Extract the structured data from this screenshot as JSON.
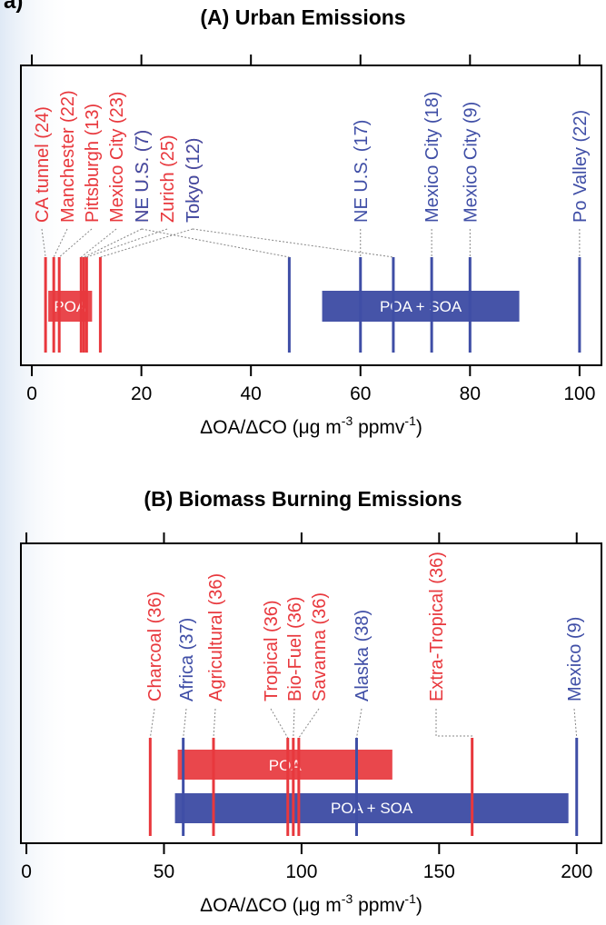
{
  "page": {
    "corner_label": "a)"
  },
  "colors": {
    "red": "#e8383d",
    "blue": "#3f4ea6",
    "poa_fill": "#e9474c",
    "soa_fill": "#4654a8"
  },
  "chart_data": [
    {
      "type": "bar",
      "title": "(A) Urban Emissions",
      "xlabel": "ΔOA/ΔCO (μg m-3 ppmv-1)",
      "xlabel_parts": {
        "main": "ΔOA/ΔCO (μg m",
        "sup1": "-3",
        "mid": " ppmv",
        "sup2": "-1",
        "end": ")"
      },
      "xlim": [
        -2,
        104
      ],
      "xticks": [
        0,
        20,
        40,
        60,
        80,
        100
      ],
      "xtick_labels": [
        "0",
        "20",
        "40",
        "60",
        "80",
        "100"
      ],
      "series": [
        {
          "name": "POA",
          "color": "#e8383d",
          "points": [
            {
              "label": "CA tunnel (24)",
              "x": 2.5
            },
            {
              "label": "Manchester (22)",
              "x": 4.0
            },
            {
              "label": "Pittsburgh (13)",
              "x": 5.0
            },
            {
              "label": "Mexico City (23)",
              "x": 9.0
            },
            {
              "label": "NE U.S. (7)",
              "x": 9.5
            },
            {
              "label": "Zurich (25)",
              "x": 10.0
            },
            {
              "label": "Tokyo (12)",
              "x": 12.5
            }
          ]
        },
        {
          "name": "POA + SOA",
          "color": "#3f4ea6",
          "points": [
            {
              "label": "NE U.S. (7)",
              "x": 47
            },
            {
              "label": "NE U.S. (17)",
              "x": 60
            },
            {
              "label": "Tokyo (12)",
              "x": 66
            },
            {
              "label": "Mexico City (18)",
              "x": 73
            },
            {
              "label": "Mexico City (9)",
              "x": 80
            },
            {
              "label": "Po Valley (22)",
              "x": 100
            }
          ]
        }
      ],
      "ranges": [
        {
          "label": "POA",
          "start": 3,
          "end": 11,
          "color": "#e9474c"
        },
        {
          "label": "POA + SOA",
          "start": 53,
          "end": 89,
          "color": "#4654a8"
        }
      ]
    },
    {
      "type": "bar",
      "title": "(B) Biomass Burning Emissions",
      "xlabel": "ΔOA/ΔCO (μg m-3 ppmv-1)",
      "xlabel_parts": {
        "main": "ΔOA/ΔCO (μg m",
        "sup1": "-3",
        "mid": " ppmv",
        "sup2": "-1",
        "end": ")"
      },
      "xlim": [
        -2,
        209
      ],
      "xticks": [
        0,
        50,
        100,
        150,
        200
      ],
      "xtick_labels": [
        "0",
        "50",
        "100",
        "150",
        "200"
      ],
      "series": [
        {
          "name": "POA",
          "color": "#e8383d",
          "points": [
            {
              "label": "Charcoal (36)",
              "x": 45
            },
            {
              "label": "Agricultural (36)",
              "x": 68
            },
            {
              "label": "Tropical (36)",
              "x": 95
            },
            {
              "label": "Bio-Fuel (36)",
              "x": 97
            },
            {
              "label": "Savanna (36)",
              "x": 99
            },
            {
              "label": "Extra-Tropical (36)",
              "x": 162
            }
          ]
        },
        {
          "name": "POA + SOA",
          "color": "#3f4ea6",
          "points": [
            {
              "label": "Africa (37)",
              "x": 57
            },
            {
              "label": "Alaska (38)",
              "x": 120
            },
            {
              "label": "Mexico (9)",
              "x": 200
            }
          ]
        }
      ],
      "ranges": [
        {
          "label": "POA",
          "start": 55,
          "end": 133,
          "color": "#e9474c"
        },
        {
          "label": "POA + SOA",
          "start": 54,
          "end": 197,
          "color": "#4654a8"
        }
      ]
    }
  ]
}
